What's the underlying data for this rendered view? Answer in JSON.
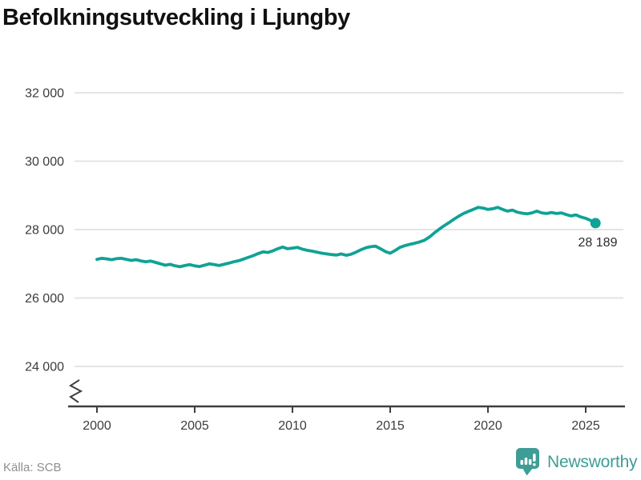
{
  "title": "Befolkningsutveckling i Ljungby",
  "source": "Källa: SCB",
  "branding": {
    "name": "Newsworthy"
  },
  "colors": {
    "line": "#10A296",
    "dot": "#10A296",
    "grid": "#E4E4E4",
    "axis": "#3F3F3F",
    "tick_text": "#3C3C3C",
    "title_text": "#111111",
    "source_text": "#8E8E8E",
    "brand": "#3E9D96",
    "end_label_text": "#2B2B2B"
  },
  "chart_data": {
    "type": "line",
    "title": "Befolkningsutveckling i Ljungby",
    "xlabel": "",
    "ylabel": "",
    "legend": "none",
    "grid": "horizontal",
    "axis_break_symbol": true,
    "ylim": [
      24000,
      32000
    ],
    "xlim": [
      2000,
      2025.5
    ],
    "y_ticks": [
      {
        "value": 32000,
        "label": "32 000"
      },
      {
        "value": 30000,
        "label": "30 000"
      },
      {
        "value": 28000,
        "label": "28 000"
      },
      {
        "value": 26000,
        "label": "26 000"
      },
      {
        "value": 24000,
        "label": "24 000"
      }
    ],
    "x_ticks": [
      {
        "value": 2000,
        "label": "2000"
      },
      {
        "value": 2005,
        "label": "2005"
      },
      {
        "value": 2010,
        "label": "2010"
      },
      {
        "value": 2015,
        "label": "2015"
      },
      {
        "value": 2020,
        "label": "2020"
      },
      {
        "value": 2025,
        "label": "2025"
      }
    ],
    "x": [
      2000,
      2000.25,
      2000.5,
      2000.75,
      2001,
      2001.25,
      2001.5,
      2001.75,
      2002,
      2002.25,
      2002.5,
      2002.75,
      2003,
      2003.25,
      2003.5,
      2003.75,
      2004,
      2004.25,
      2004.5,
      2004.75,
      2005,
      2005.25,
      2005.5,
      2005.75,
      2006,
      2006.25,
      2006.5,
      2006.75,
      2007,
      2007.25,
      2007.5,
      2007.75,
      2008,
      2008.25,
      2008.5,
      2008.75,
      2009,
      2009.25,
      2009.5,
      2009.75,
      2010,
      2010.25,
      2010.5,
      2010.75,
      2011,
      2011.25,
      2011.5,
      2011.75,
      2012,
      2012.25,
      2012.5,
      2012.75,
      2013,
      2013.25,
      2013.5,
      2013.75,
      2014,
      2014.25,
      2014.5,
      2014.75,
      2015,
      2015.25,
      2015.5,
      2015.75,
      2016,
      2016.25,
      2016.5,
      2016.75,
      2017,
      2017.25,
      2017.5,
      2017.75,
      2018,
      2018.25,
      2018.5,
      2018.75,
      2019,
      2019.25,
      2019.5,
      2019.75,
      2020,
      2020.25,
      2020.5,
      2020.75,
      2021,
      2021.25,
      2021.5,
      2021.75,
      2022,
      2022.25,
      2022.5,
      2022.75,
      2023,
      2023.25,
      2023.5,
      2023.75,
      2024,
      2024.25,
      2024.5,
      2024.75,
      2025,
      2025.25,
      2025.5
    ],
    "values": [
      27130,
      27160,
      27145,
      27120,
      27150,
      27160,
      27130,
      27100,
      27120,
      27085,
      27060,
      27080,
      27040,
      27000,
      26960,
      26985,
      26940,
      26915,
      26950,
      26975,
      26940,
      26920,
      26960,
      27000,
      26975,
      26950,
      26985,
      27020,
      27060,
      27090,
      27140,
      27190,
      27240,
      27300,
      27350,
      27330,
      27380,
      27440,
      27490,
      27440,
      27460,
      27480,
      27430,
      27395,
      27370,
      27340,
      27310,
      27290,
      27270,
      27255,
      27290,
      27250,
      27280,
      27340,
      27410,
      27470,
      27500,
      27515,
      27440,
      27360,
      27310,
      27390,
      27480,
      27530,
      27570,
      27600,
      27640,
      27690,
      27780,
      27900,
      28010,
      28110,
      28200,
      28300,
      28390,
      28470,
      28530,
      28590,
      28650,
      28630,
      28590,
      28610,
      28650,
      28590,
      28540,
      28570,
      28510,
      28480,
      28460,
      28490,
      28540,
      28490,
      28470,
      28500,
      28470,
      28490,
      28440,
      28400,
      28430,
      28370,
      28330,
      28270,
      28189
    ],
    "last_point": {
      "x": 2025.5,
      "value": 28189,
      "label": "28 189"
    }
  }
}
